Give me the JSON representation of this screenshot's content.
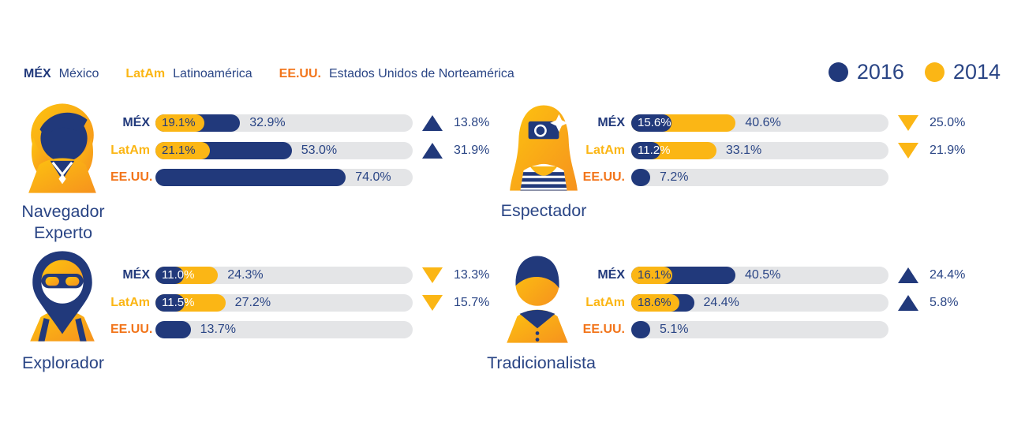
{
  "colors": {
    "navy": "#21397B",
    "yellow": "#FBB615",
    "orange": "#F2751B",
    "track_gray": "#E4E5E7",
    "text_navy": "#2A4585"
  },
  "region_legend": [
    {
      "abbr": "MÉX",
      "key": "mex",
      "name": "México"
    },
    {
      "abbr": "LatAm",
      "key": "latam",
      "name": "Latinoamérica"
    },
    {
      "abbr": "EE.UU.",
      "key": "eeuu",
      "name": "Estados Unidos de Norteamérica"
    }
  ],
  "year_legend": [
    {
      "label": "2016",
      "color": "#21397B"
    },
    {
      "label": "2014",
      "color": "#FBB615"
    }
  ],
  "chart_data": {
    "type": "bar",
    "orientation": "horizontal",
    "unit": "%",
    "xlim": [
      0,
      100
    ],
    "series_years": [
      "2016",
      "2014"
    ],
    "legend_position": "top-right",
    "groups": [
      {
        "title": "Navegador Experto",
        "icon": "expert-navigator",
        "rows": [
          {
            "region": "MÉX",
            "region_key": "mex",
            "bars": [
              {
                "year": "2016",
                "value": 32.9,
                "label": "32.9%"
              },
              {
                "year": "2014",
                "value": 19.1,
                "label": "19.1%"
              }
            ],
            "change": {
              "label": "13.8%",
              "direction": "up"
            }
          },
          {
            "region": "LatAm",
            "region_key": "latam",
            "bars": [
              {
                "year": "2016",
                "value": 53.0,
                "label": "53.0%"
              },
              {
                "year": "2014",
                "value": 21.1,
                "label": "21.1%"
              }
            ],
            "change": {
              "label": "31.9%",
              "direction": "up"
            }
          },
          {
            "region": "EE.UU.",
            "region_key": "eeuu",
            "bars": [
              {
                "year": "2016",
                "value": 74.0,
                "label": "74.0%"
              }
            ],
            "change": null
          }
        ]
      },
      {
        "title": "Espectador",
        "icon": "spectator",
        "rows": [
          {
            "region": "MÉX",
            "region_key": "mex",
            "bars": [
              {
                "year": "2016",
                "value": 15.6,
                "label": "15.6%"
              },
              {
                "year": "2014",
                "value": 40.6,
                "label": "40.6%"
              }
            ],
            "change": {
              "label": "25.0%",
              "direction": "down"
            }
          },
          {
            "region": "LatAm",
            "region_key": "latam",
            "bars": [
              {
                "year": "2016",
                "value": 11.2,
                "label": "11.2%"
              },
              {
                "year": "2014",
                "value": 33.1,
                "label": "33.1%"
              }
            ],
            "change": {
              "label": "21.9%",
              "direction": "down"
            }
          },
          {
            "region": "EE.UU.",
            "region_key": "eeuu",
            "bars": [
              {
                "year": "2016",
                "value": 7.2,
                "label": "7.2%"
              }
            ],
            "change": null
          }
        ]
      },
      {
        "title": "Explorador",
        "icon": "explorer",
        "rows": [
          {
            "region": "MÉX",
            "region_key": "mex",
            "bars": [
              {
                "year": "2016",
                "value": 11.0,
                "label": "11.0%"
              },
              {
                "year": "2014",
                "value": 24.3,
                "label": "24.3%"
              }
            ],
            "change": {
              "label": "13.3%",
              "direction": "down"
            }
          },
          {
            "region": "LatAm",
            "region_key": "latam",
            "bars": [
              {
                "year": "2016",
                "value": 11.5,
                "label": "11.5%"
              },
              {
                "year": "2014",
                "value": 27.2,
                "label": "27.2%"
              }
            ],
            "change": {
              "label": "15.7%",
              "direction": "down"
            }
          },
          {
            "region": "EE.UU.",
            "region_key": "eeuu",
            "bars": [
              {
                "year": "2016",
                "value": 13.7,
                "label": "13.7%"
              }
            ],
            "change": null
          }
        ]
      },
      {
        "title": "Tradicionalista",
        "icon": "traditionalist",
        "rows": [
          {
            "region": "MÉX",
            "region_key": "mex",
            "bars": [
              {
                "year": "2016",
                "value": 40.5,
                "label": "40.5%"
              },
              {
                "year": "2014",
                "value": 16.1,
                "label": "16.1%"
              }
            ],
            "change": {
              "label": "24.4%",
              "direction": "up"
            }
          },
          {
            "region": "LatAm",
            "region_key": "latam",
            "bars": [
              {
                "year": "2016",
                "value": 24.4,
                "label": "24.4%"
              },
              {
                "year": "2014",
                "value": 18.6,
                "label": "18.6%"
              }
            ],
            "change": {
              "label": "5.8%",
              "direction": "up"
            }
          },
          {
            "region": "EE.UU.",
            "region_key": "eeuu",
            "bars": [
              {
                "year": "2016",
                "value": 5.1,
                "label": "5.1%"
              }
            ],
            "change": null
          }
        ]
      }
    ]
  }
}
